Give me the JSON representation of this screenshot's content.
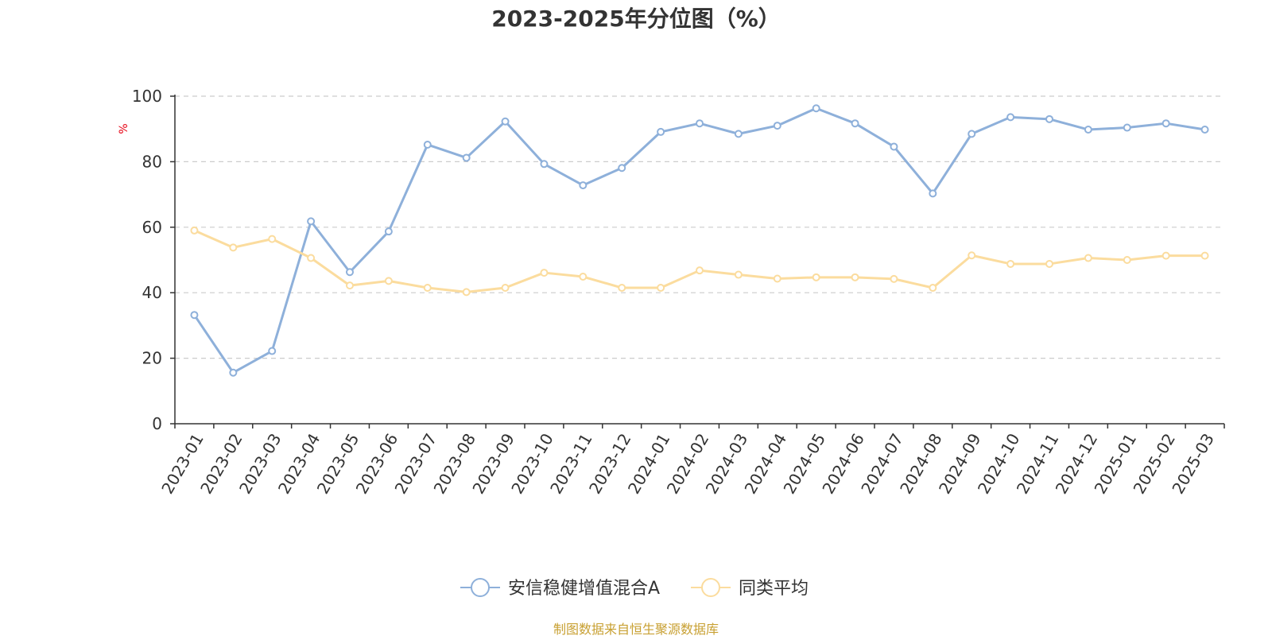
{
  "chart_data": {
    "type": "line",
    "title": "2023-2025年分位图（%）",
    "ylabel": "%",
    "ylim": [
      0,
      100
    ],
    "yticks": [
      0,
      20,
      40,
      60,
      80,
      100
    ],
    "grid": true,
    "legend_position": "bottom-center",
    "categories": [
      "2023-01",
      "2023-02",
      "2023-03",
      "2023-04",
      "2023-05",
      "2023-06",
      "2023-07",
      "2023-08",
      "2023-09",
      "2023-10",
      "2023-11",
      "2023-12",
      "2024-01",
      "2024-02",
      "2024-03",
      "2024-04",
      "2024-05",
      "2024-06",
      "2024-07",
      "2024-08",
      "2024-09",
      "2024-10",
      "2024-11",
      "2024-12",
      "2025-01",
      "2025-02",
      "2025-03"
    ],
    "series": [
      {
        "name": "安信稳健增值混合A",
        "color": "#8eb0da",
        "values": [
          33.2,
          15.6,
          22.2,
          61.8,
          46.3,
          58.7,
          85.2,
          81.2,
          92.3,
          79.3,
          72.8,
          78.1,
          89.1,
          91.7,
          88.5,
          91.0,
          96.3,
          91.7,
          84.6,
          70.3,
          88.5,
          93.6,
          93.0,
          89.8,
          90.4,
          91.7,
          89.8
        ]
      },
      {
        "name": "同类平均",
        "color": "#fbdc9e",
        "values": [
          59.0,
          53.8,
          56.4,
          50.6,
          42.2,
          43.6,
          41.5,
          40.2,
          41.5,
          46.1,
          44.9,
          41.5,
          41.5,
          46.8,
          45.5,
          44.3,
          44.7,
          44.7,
          44.2,
          41.5,
          51.4,
          48.8,
          48.8,
          50.6,
          50.0,
          51.3,
          51.3
        ]
      }
    ]
  },
  "source_text": "制图数据来自恒生聚源数据库",
  "colors": {
    "axis": "#333333",
    "grid": "#cccccc",
    "ylabel": "#e60012",
    "source": "#c8a032"
  }
}
